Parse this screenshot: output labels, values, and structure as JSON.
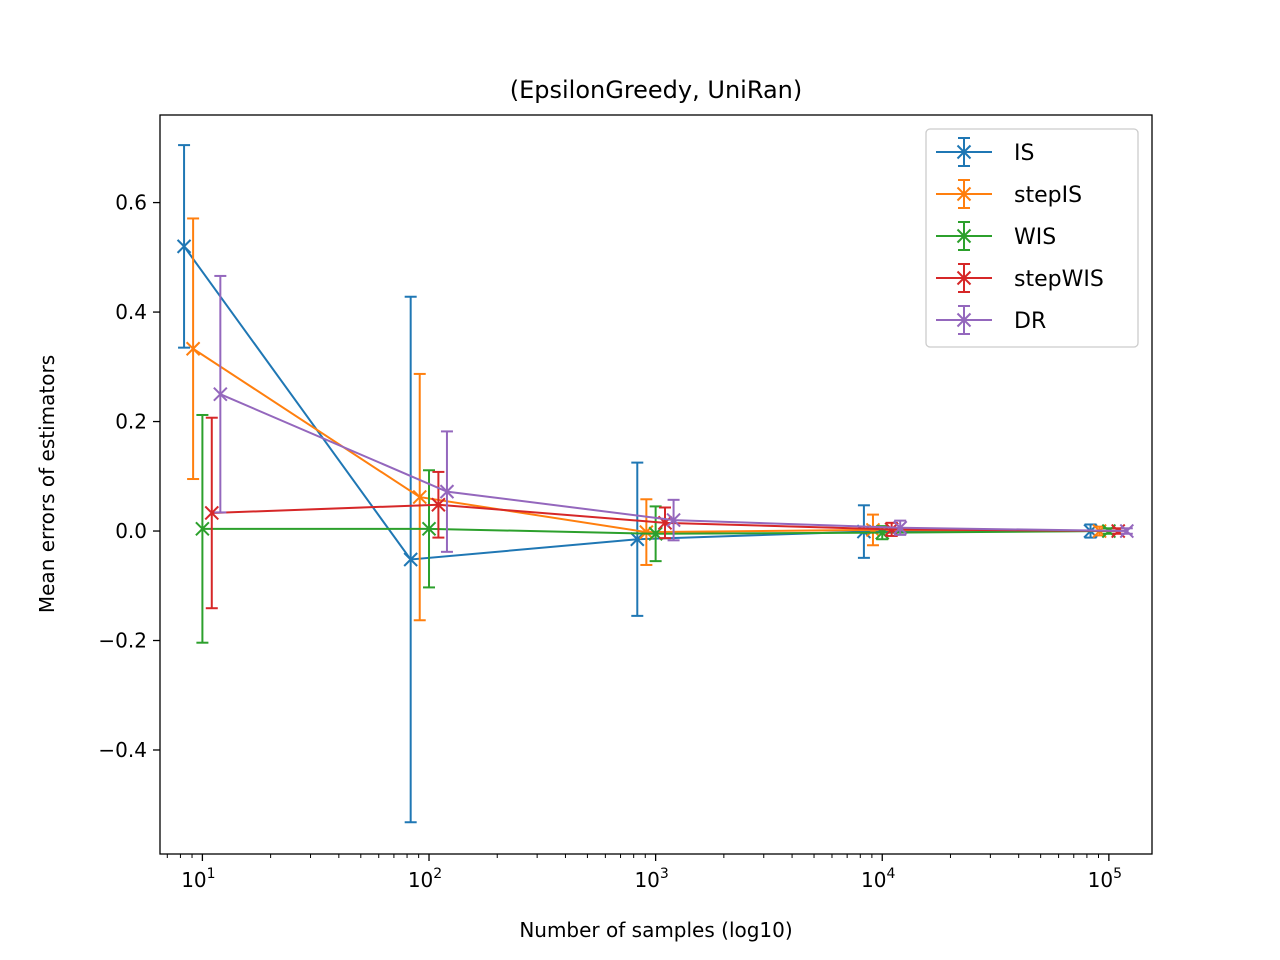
{
  "chart_data": {
    "type": "line",
    "title": "(EpsilonGreedy, UniRan)",
    "xlabel": "Number of samples (log10)",
    "ylabel": "Mean errors of estimators",
    "xscale": "log",
    "xlim": [
      6.5,
      155000
    ],
    "ylim": [
      -0.59,
      0.76
    ],
    "yticks": [
      -0.4,
      -0.2,
      0.0,
      0.2,
      0.4,
      0.6
    ],
    "ytick_labels": [
      "−0.4",
      "−0.2",
      "0.0",
      "0.2",
      "0.4",
      "0.6"
    ],
    "xticks": [
      10,
      100,
      1000,
      10000,
      100000
    ],
    "xtick_labels": [
      {
        "base": "10",
        "exp": "1"
      },
      {
        "base": "10",
        "exp": "2"
      },
      {
        "base": "10",
        "exp": "3"
      },
      {
        "base": "10",
        "exp": "4"
      },
      {
        "base": "10",
        "exp": "5"
      }
    ],
    "legend_position": "top-right",
    "grid": false,
    "marker": "x",
    "error_bars": true,
    "series": [
      {
        "name": "IS",
        "color": "#1f77b4",
        "x": [
          8.3,
          83,
          830,
          8300,
          83000
        ],
        "y": [
          0.52,
          -0.052,
          -0.015,
          -0.001,
          0.0
        ],
        "yerr": [
          0.185,
          0.48,
          0.14,
          0.048,
          0.012
        ]
      },
      {
        "name": "stepIS",
        "color": "#ff7f0e",
        "x": [
          9.1,
          91,
          910,
          9100,
          91000
        ],
        "y": [
          0.333,
          0.062,
          -0.002,
          0.002,
          0.0
        ],
        "yerr": [
          0.238,
          0.225,
          0.06,
          0.028,
          0.008
        ]
      },
      {
        "name": "WIS",
        "color": "#2ca02c",
        "x": [
          10,
          100,
          1000,
          10000,
          100000
        ],
        "y": [
          0.004,
          0.004,
          -0.005,
          -0.003,
          0.0
        ],
        "yerr": [
          0.208,
          0.107,
          0.05,
          0.012,
          0.005
        ]
      },
      {
        "name": "stepWIS",
        "color": "#d62728",
        "x": [
          11,
          110,
          1100,
          11000,
          110000
        ],
        "y": [
          0.033,
          0.048,
          0.015,
          0.003,
          0.0
        ],
        "yerr": [
          0.174,
          0.06,
          0.028,
          0.012,
          0.005
        ]
      },
      {
        "name": "DR",
        "color": "#9467bd",
        "x": [
          12,
          120,
          1200,
          12000,
          120000
        ],
        "y": [
          0.25,
          0.072,
          0.02,
          0.006,
          0.0
        ],
        "yerr": [
          0.216,
          0.11,
          0.037,
          0.013,
          0.005
        ]
      }
    ]
  }
}
